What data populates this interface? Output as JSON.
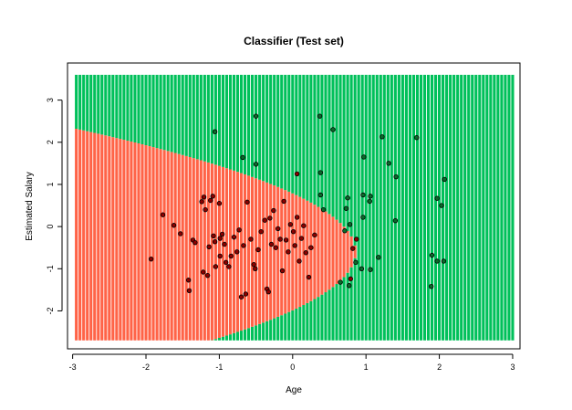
{
  "chart_data": {
    "type": "scatter",
    "title": "Classifier (Test set)",
    "xlabel": "Age",
    "ylabel": "Estimated Salary",
    "xlim": [
      -3.07,
      3.1
    ],
    "ylim": [
      -2.9,
      3.88
    ],
    "xticks": [
      -3,
      -2,
      -1,
      0,
      1,
      2,
      3
    ],
    "yticks": [
      -2,
      -1,
      0,
      1,
      2,
      3
    ],
    "grid_x_range": [
      -2.95,
      3.0
    ],
    "grid_y_range": [
      -2.7,
      3.6
    ],
    "grid_step": 0.05,
    "region_colors": {
      "class0": "#ff6347",
      "class1": "#00c05a"
    },
    "point_colors": {
      "class0": "#8b0000",
      "class1": "#0a6b2a"
    },
    "boundary": {
      "description_note": "",
      "vertex": [
        0.86,
        -0.6
      ],
      "left_top": [
        -2.95,
        2.32
      ],
      "bottom_cut": [
        -0.52,
        -2.7
      ]
    },
    "points": [
      {
        "x": -1.93,
        "y": -0.77,
        "c": 0
      },
      {
        "x": -1.77,
        "y": 0.28,
        "c": 0
      },
      {
        "x": -1.62,
        "y": 0.03,
        "c": 0
      },
      {
        "x": -1.53,
        "y": -0.17,
        "c": 0
      },
      {
        "x": -1.42,
        "y": -1.27,
        "c": 0
      },
      {
        "x": -1.41,
        "y": -1.52,
        "c": 0
      },
      {
        "x": -1.36,
        "y": -0.32,
        "c": 0
      },
      {
        "x": -1.33,
        "y": -0.38,
        "c": 0
      },
      {
        "x": -1.24,
        "y": 0.59,
        "c": 0
      },
      {
        "x": -1.22,
        "y": -1.08,
        "c": 0
      },
      {
        "x": -1.21,
        "y": 0.7,
        "c": 0
      },
      {
        "x": -1.19,
        "y": 0.4,
        "c": 0
      },
      {
        "x": -1.16,
        "y": -1.16,
        "c": 0
      },
      {
        "x": -1.14,
        "y": -0.48,
        "c": 0
      },
      {
        "x": -1.12,
        "y": 0.62,
        "c": 0
      },
      {
        "x": -1.09,
        "y": 0.72,
        "c": 0
      },
      {
        "x": -1.08,
        "y": -0.22,
        "c": 0
      },
      {
        "x": -1.06,
        "y": -0.36,
        "c": 0
      },
      {
        "x": -1.05,
        "y": -0.95,
        "c": 0
      },
      {
        "x": -1.0,
        "y": 0.55,
        "c": 0
      },
      {
        "x": -0.99,
        "y": -0.7,
        "c": 0
      },
      {
        "x": -0.96,
        "y": -0.18,
        "c": 0
      },
      {
        "x": -0.93,
        "y": -0.42,
        "c": 0
      },
      {
        "x": -0.91,
        "y": -0.85,
        "c": 0
      },
      {
        "x": -0.87,
        "y": -0.95,
        "c": 0
      },
      {
        "x": -0.84,
        "y": -0.7,
        "c": 0
      },
      {
        "x": -0.8,
        "y": -0.25,
        "c": 0
      },
      {
        "x": -0.76,
        "y": -0.6,
        "c": 0
      },
      {
        "x": -0.73,
        "y": -0.08,
        "c": 0
      },
      {
        "x": -0.7,
        "y": -1.67,
        "c": 0
      },
      {
        "x": -0.67,
        "y": -0.45,
        "c": 0
      },
      {
        "x": -0.64,
        "y": -1.6,
        "c": 0
      },
      {
        "x": -0.62,
        "y": 0.58,
        "c": 0
      },
      {
        "x": -0.57,
        "y": -0.3,
        "c": 0
      },
      {
        "x": -0.53,
        "y": -0.9,
        "c": 0
      },
      {
        "x": -0.51,
        "y": -1.0,
        "c": 0
      },
      {
        "x": -0.47,
        "y": -0.55,
        "c": 0
      },
      {
        "x": -0.43,
        "y": -0.12,
        "c": 0
      },
      {
        "x": -0.38,
        "y": 0.15,
        "c": 0
      },
      {
        "x": -0.35,
        "y": -1.48,
        "c": 0
      },
      {
        "x": -0.33,
        "y": -1.55,
        "c": 0
      },
      {
        "x": -0.31,
        "y": 0.2,
        "c": 0
      },
      {
        "x": -0.29,
        "y": -0.42,
        "c": 0
      },
      {
        "x": -0.26,
        "y": 0.38,
        "c": 0
      },
      {
        "x": -0.23,
        "y": -0.5,
        "c": 0
      },
      {
        "x": -0.2,
        "y": -0.05,
        "c": 0
      },
      {
        "x": -0.17,
        "y": -0.3,
        "c": 0
      },
      {
        "x": -0.14,
        "y": -1.05,
        "c": 0
      },
      {
        "x": -0.12,
        "y": 0.6,
        "c": 0
      },
      {
        "x": -0.09,
        "y": -0.32,
        "c": 0
      },
      {
        "x": -0.06,
        "y": -0.6,
        "c": 0
      },
      {
        "x": -0.03,
        "y": 0.05,
        "c": 0
      },
      {
        "x": 0.01,
        "y": -0.12,
        "c": 0
      },
      {
        "x": 0.03,
        "y": -0.45,
        "c": 0
      },
      {
        "x": 0.06,
        "y": 0.22,
        "c": 0
      },
      {
        "x": 0.09,
        "y": -0.82,
        "c": 0
      },
      {
        "x": 0.12,
        "y": -0.28,
        "c": 0
      },
      {
        "x": 0.15,
        "y": 0.02,
        "c": 0
      },
      {
        "x": 0.18,
        "y": -0.62,
        "c": 0
      },
      {
        "x": 0.22,
        "y": -1.2,
        "c": 0
      },
      {
        "x": 0.25,
        "y": -0.5,
        "c": 0
      },
      {
        "x": 0.3,
        "y": -0.2,
        "c": 0
      },
      {
        "x": 0.06,
        "y": 1.25,
        "c": 0
      },
      {
        "x": -0.99,
        "y": -0.28,
        "c": 0
      },
      {
        "x": 0.82,
        "y": -0.52,
        "c": 0
      },
      {
        "x": 0.79,
        "y": -1.24,
        "c": 0
      },
      {
        "x": 0.87,
        "y": -0.3,
        "c": 0
      },
      {
        "x": -1.06,
        "y": 2.25,
        "c": 1
      },
      {
        "x": -0.5,
        "y": 2.62,
        "c": 1
      },
      {
        "x": -0.5,
        "y": 1.48,
        "c": 1
      },
      {
        "x": -0.68,
        "y": 1.64,
        "c": 1
      },
      {
        "x": 0.37,
        "y": 2.62,
        "c": 1
      },
      {
        "x": 0.55,
        "y": 2.3,
        "c": 1
      },
      {
        "x": 0.38,
        "y": 1.28,
        "c": 1
      },
      {
        "x": 1.22,
        "y": 2.13,
        "c": 1
      },
      {
        "x": 1.69,
        "y": 2.11,
        "c": 1
      },
      {
        "x": 0.97,
        "y": 1.65,
        "c": 1
      },
      {
        "x": 1.31,
        "y": 1.5,
        "c": 1
      },
      {
        "x": 1.41,
        "y": 1.18,
        "c": 1
      },
      {
        "x": 2.07,
        "y": 1.12,
        "c": 1
      },
      {
        "x": 1.97,
        "y": 0.67,
        "c": 1
      },
      {
        "x": 2.03,
        "y": 0.5,
        "c": 1
      },
      {
        "x": 1.06,
        "y": 0.72,
        "c": 1
      },
      {
        "x": 1.05,
        "y": 0.6,
        "c": 1
      },
      {
        "x": 0.96,
        "y": 0.75,
        "c": 1
      },
      {
        "x": 0.75,
        "y": 0.68,
        "c": 1
      },
      {
        "x": 0.73,
        "y": 0.43,
        "c": 1
      },
      {
        "x": 0.38,
        "y": 0.75,
        "c": 1
      },
      {
        "x": 0.42,
        "y": 0.4,
        "c": 1
      },
      {
        "x": 0.96,
        "y": 0.22,
        "c": 1
      },
      {
        "x": 0.78,
        "y": 0.05,
        "c": 1
      },
      {
        "x": 1.4,
        "y": 0.14,
        "c": 1
      },
      {
        "x": 0.71,
        "y": -0.1,
        "c": 1
      },
      {
        "x": 1.17,
        "y": -0.73,
        "c": 1
      },
      {
        "x": 1.06,
        "y": -1.02,
        "c": 1
      },
      {
        "x": 0.94,
        "y": -1.0,
        "c": 1
      },
      {
        "x": 0.77,
        "y": -1.4,
        "c": 1
      },
      {
        "x": 0.65,
        "y": -1.32,
        "c": 1
      },
      {
        "x": 1.9,
        "y": -0.68,
        "c": 1
      },
      {
        "x": 1.97,
        "y": -0.82,
        "c": 1
      },
      {
        "x": 2.06,
        "y": -0.82,
        "c": 1
      },
      {
        "x": 1.89,
        "y": -1.42,
        "c": 1
      },
      {
        "x": 0.86,
        "y": -0.85,
        "c": 1
      }
    ]
  }
}
